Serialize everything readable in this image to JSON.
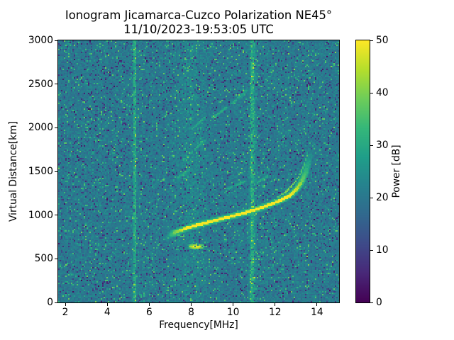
{
  "chart_data": {
    "type": "heatmap",
    "title": "Ionogram Jicamarca-Cuzco Polarization NE45°",
    "subtitle": "11/10/2023-19:53:05 UTC",
    "xlabel": "Frequency[MHz]",
    "ylabel": "Virtual Distance[km]",
    "xlim": [
      1.66,
      15.05
    ],
    "ylim": [
      0,
      3000
    ],
    "xticks": [
      2,
      4,
      6,
      8,
      10,
      12,
      14
    ],
    "yticks": [
      0,
      500,
      1000,
      1500,
      2000,
      2500,
      3000
    ],
    "grid": false,
    "colorbar": {
      "label": "Power [dB]",
      "min": 0,
      "max": 50,
      "ticks": [
        0,
        10,
        20,
        30,
        40,
        50
      ],
      "colormap": "viridis"
    },
    "noise": {
      "base_db": 20.5,
      "jitter_db": 4.6,
      "dark_speckle": {
        "prob": 0.085,
        "drop_db": [
          6,
          16
        ]
      },
      "bright_speckle": {
        "prob": 0.06,
        "boost_db": [
          6,
          17
        ]
      }
    },
    "interference_bands": [
      {
        "freq_mhz": 5.31,
        "sigma_mhz": 0.05,
        "boost_db": 11.5
      },
      {
        "freq_mhz": 8.05,
        "sigma_mhz": 0.45,
        "boost_db": 2.2
      },
      {
        "freq_mhz": 10.92,
        "sigma_mhz": 0.09,
        "boost_db": 11
      }
    ],
    "echo_trace": {
      "name": "F-layer O-mode echo",
      "peak_power_db": 50,
      "points_f_km_w": [
        [
          6.78,
          745,
          0.4
        ],
        [
          7.2,
          810,
          0.8
        ],
        [
          7.7,
          855,
          1
        ],
        [
          8.35,
          900,
          1
        ],
        [
          9.0,
          940,
          1
        ],
        [
          9.7,
          982,
          1
        ],
        [
          10.4,
          1025,
          1
        ],
        [
          11.05,
          1072,
          1
        ],
        [
          11.75,
          1130,
          1
        ],
        [
          12.25,
          1178,
          1
        ],
        [
          12.68,
          1235,
          1
        ],
        [
          13.0,
          1308,
          0.92
        ],
        [
          13.25,
          1398,
          0.8
        ],
        [
          13.42,
          1495,
          0.68
        ],
        [
          13.55,
          1605,
          0.56
        ],
        [
          13.65,
          1700,
          0.42
        ]
      ]
    },
    "secondary_trace": {
      "name": "X-mode echo (faint)",
      "peak_power_db": 36,
      "points_f_km_w": [
        [
          11.9,
          1185,
          0.5
        ],
        [
          12.5,
          1275,
          0.6
        ],
        [
          12.9,
          1375,
          0.6
        ],
        [
          13.2,
          1490,
          0.55
        ],
        [
          13.42,
          1630,
          0.5
        ],
        [
          13.56,
          1780,
          0.35
        ]
      ]
    },
    "sporadic_blob": {
      "name": "bright echo patch",
      "freq_mhz": 8.2,
      "range_km": 648,
      "half_width_mhz": 0.38,
      "half_height_km": 28,
      "peak_power_db": 48
    },
    "faint_streaks": [
      {
        "points": [
          [
            7.6,
            1640
          ],
          [
            8.6,
            1860
          ]
        ]
      },
      {
        "points": [
          [
            8.0,
            1990
          ],
          [
            8.6,
            2120
          ]
        ]
      },
      {
        "points": [
          [
            9.0,
            2120
          ],
          [
            9.7,
            2250
          ]
        ]
      },
      {
        "points": [
          [
            9.95,
            2290
          ],
          [
            10.6,
            2430
          ]
        ]
      },
      {
        "points": [
          [
            9.6,
            1300
          ],
          [
            10.5,
            1390
          ]
        ]
      },
      {
        "points": [
          [
            7.3,
            1430
          ],
          [
            7.9,
            1530
          ]
        ]
      },
      {
        "points": [
          [
            11.1,
            1380
          ],
          [
            11.6,
            1450
          ]
        ]
      }
    ]
  }
}
